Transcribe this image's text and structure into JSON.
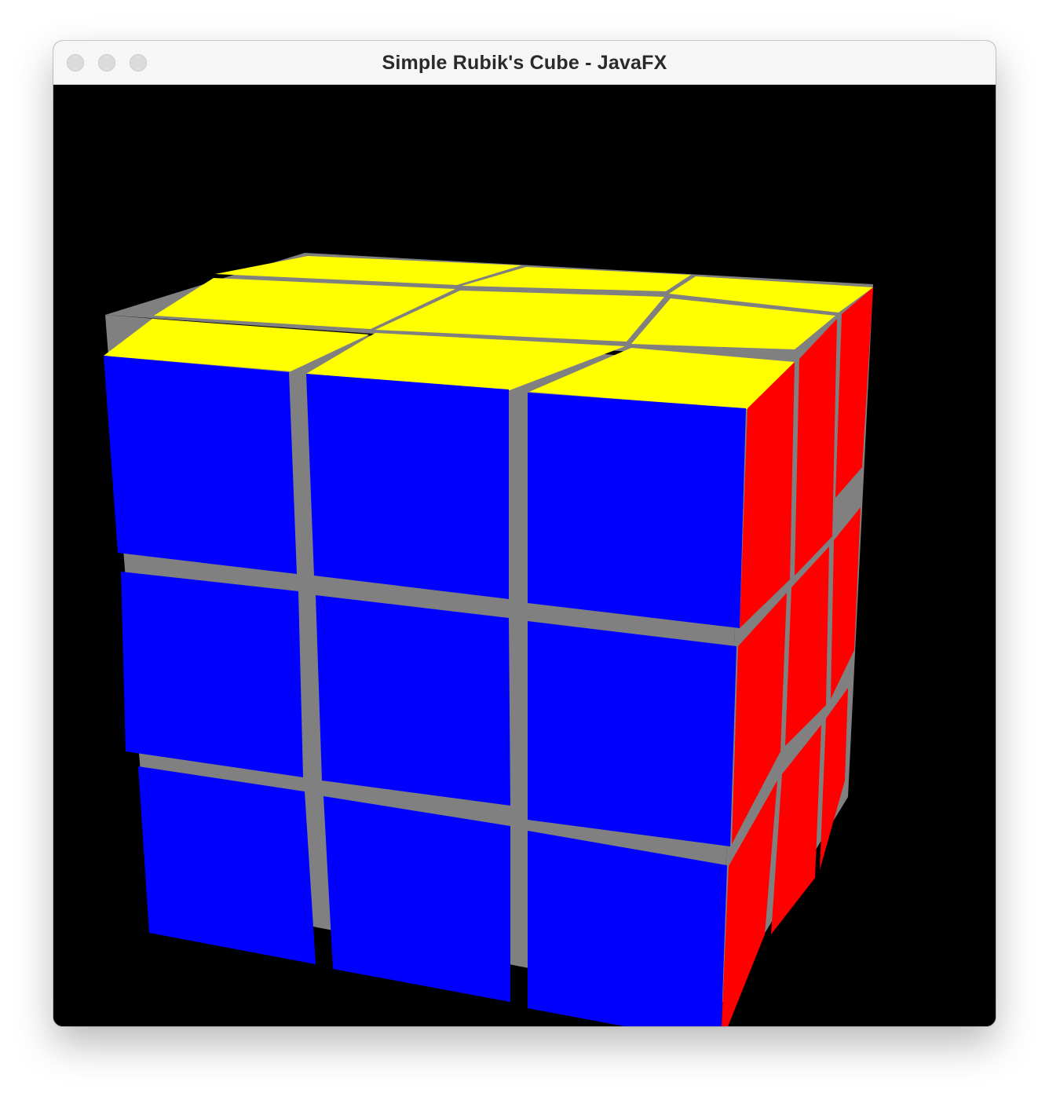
{
  "window": {
    "title": "Simple Rubik's Cube - JavaFX",
    "controls": [
      "close-button",
      "minimize-button",
      "zoom-button"
    ]
  },
  "scene": {
    "background": "#000000",
    "gap_color": "#808080",
    "faces": {
      "front": {
        "color": "#0000ff",
        "grid": [
          3,
          3
        ]
      },
      "top": {
        "color": "#ffff00",
        "grid": [
          3,
          3
        ]
      },
      "right": {
        "color": "#ff0000",
        "grid": [
          3,
          3
        ]
      }
    }
  }
}
